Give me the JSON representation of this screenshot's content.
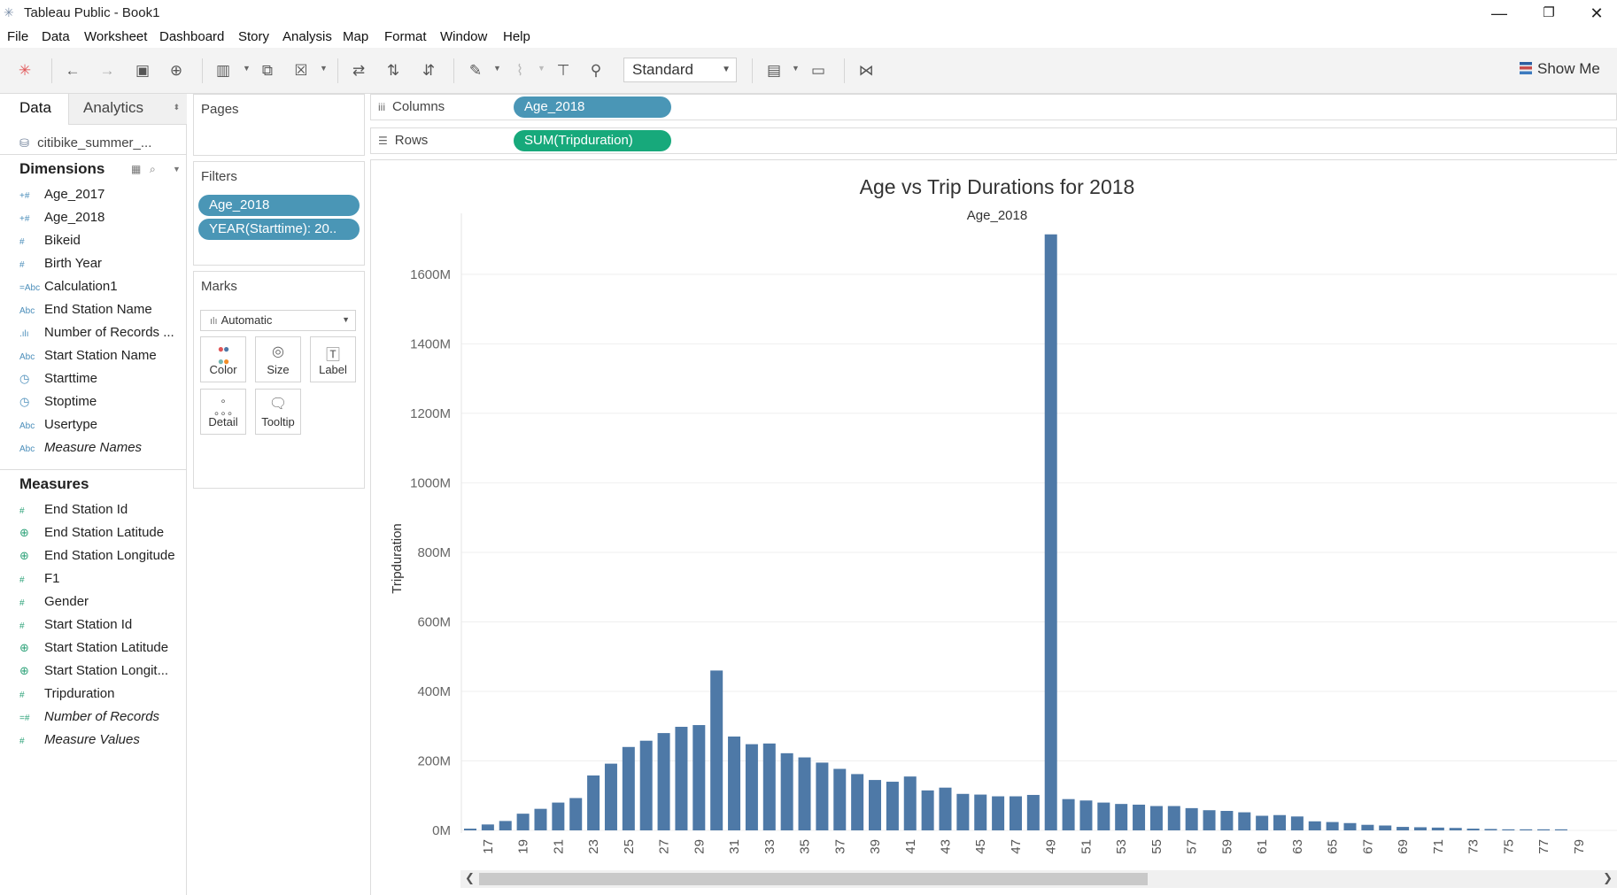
{
  "window": {
    "title": "Tableau Public - Book1"
  },
  "menu": [
    "File",
    "Data",
    "Worksheet",
    "Dashboard",
    "Story",
    "Analysis",
    "Map",
    "Format",
    "Window",
    "Help"
  ],
  "toolbar": {
    "fit_mode": "Standard",
    "show_me": "Show Me"
  },
  "data_pane": {
    "tabs": {
      "data": "Data",
      "analytics": "Analytics"
    },
    "datasource": "citibike_summer_...",
    "dimensions_label": "Dimensions",
    "dimensions": [
      {
        "label": "Age_2017",
        "type": "#"
      },
      {
        "label": "Age_2018",
        "type": "#"
      },
      {
        "label": "Bikeid",
        "type": "#"
      },
      {
        "label": "Birth Year",
        "type": "#"
      },
      {
        "label": "Calculation1",
        "type": "Abc"
      },
      {
        "label": "End Station Name",
        "type": "Abc"
      },
      {
        "label": "Number of Records ...",
        "type": "ılı"
      },
      {
        "label": "Start Station Name",
        "type": "Abc"
      },
      {
        "label": "Starttime",
        "type": "cal"
      },
      {
        "label": "Stoptime",
        "type": "cal"
      },
      {
        "label": "Usertype",
        "type": "Abc"
      },
      {
        "label": "Measure Names",
        "type": "Abc"
      }
    ],
    "measures_label": "Measures",
    "measures": [
      {
        "label": "End Station Id",
        "type": "#"
      },
      {
        "label": "End Station Latitude",
        "type": "geo"
      },
      {
        "label": "End Station Longitude",
        "type": "geo"
      },
      {
        "label": "F1",
        "type": "#"
      },
      {
        "label": "Gender",
        "type": "#"
      },
      {
        "label": "Start Station Id",
        "type": "#"
      },
      {
        "label": "Start Station Latitude",
        "type": "geo"
      },
      {
        "label": "Start Station Longit...",
        "type": "geo"
      },
      {
        "label": "Tripduration",
        "type": "#"
      },
      {
        "label": "Number of Records",
        "type": "#"
      },
      {
        "label": "Measure Values",
        "type": "#"
      }
    ]
  },
  "pages": {
    "title": "Pages"
  },
  "filters": {
    "title": "Filters",
    "pills": [
      "Age_2018",
      "YEAR(Starttime): 20.."
    ]
  },
  "marks": {
    "title": "Marks",
    "type": "Automatic",
    "buttons": [
      "Color",
      "Size",
      "Label",
      "Detail",
      "Tooltip"
    ]
  },
  "shelves": {
    "columns_label": "Columns",
    "columns_pill": "Age_2018",
    "rows_label": "Rows",
    "rows_pill": "SUM(Tripduration)"
  },
  "chart_data": {
    "type": "bar",
    "title": "Age vs Trip Durations for 2018",
    "xlabel": "Age_2018",
    "ylabel": "Tripduration",
    "ylim": [
      0,
      1750
    ],
    "y_ticks": [
      "0M",
      "200M",
      "400M",
      "600M",
      "800M",
      "1000M",
      "1200M",
      "1400M",
      "1600M"
    ],
    "x_tick_labels": [
      "17",
      "19",
      "21",
      "23",
      "25",
      "27",
      "29",
      "31",
      "33",
      "35",
      "37",
      "39",
      "41",
      "43",
      "45",
      "47",
      "49",
      "51",
      "53",
      "55",
      "57",
      "59",
      "61",
      "63",
      "65",
      "67",
      "69",
      "71",
      "73",
      "75",
      "77",
      "79"
    ],
    "bar_color": "#4e79a7",
    "series": [
      {
        "x": [
          16,
          17,
          18,
          19,
          20,
          21,
          22,
          23,
          24,
          25,
          26,
          27,
          28,
          29,
          30,
          31,
          32,
          33,
          34,
          35,
          36,
          37,
          38,
          39,
          40,
          41,
          42,
          43,
          44,
          45,
          46,
          47,
          48,
          49,
          50,
          51,
          52,
          53,
          54,
          55,
          56,
          57,
          58,
          59,
          60,
          61,
          62,
          63,
          64,
          65,
          66,
          67,
          68,
          69,
          70,
          71,
          72,
          73,
          74,
          75,
          76,
          77,
          78
        ],
        "values": [
          5,
          17,
          27,
          48,
          62,
          80,
          93,
          158,
          192,
          240,
          258,
          280,
          298,
          303,
          460,
          270,
          248,
          250,
          222,
          210,
          195,
          177,
          162,
          145,
          140,
          155,
          115,
          123,
          105,
          103,
          98,
          98,
          102,
          1715,
          90,
          86,
          80,
          76,
          74,
          70,
          70,
          64,
          58,
          56,
          52,
          42,
          44,
          40,
          26,
          24,
          21,
          16,
          14,
          10,
          9,
          8,
          7,
          5,
          4,
          3,
          3,
          3,
          3
        ]
      }
    ]
  }
}
